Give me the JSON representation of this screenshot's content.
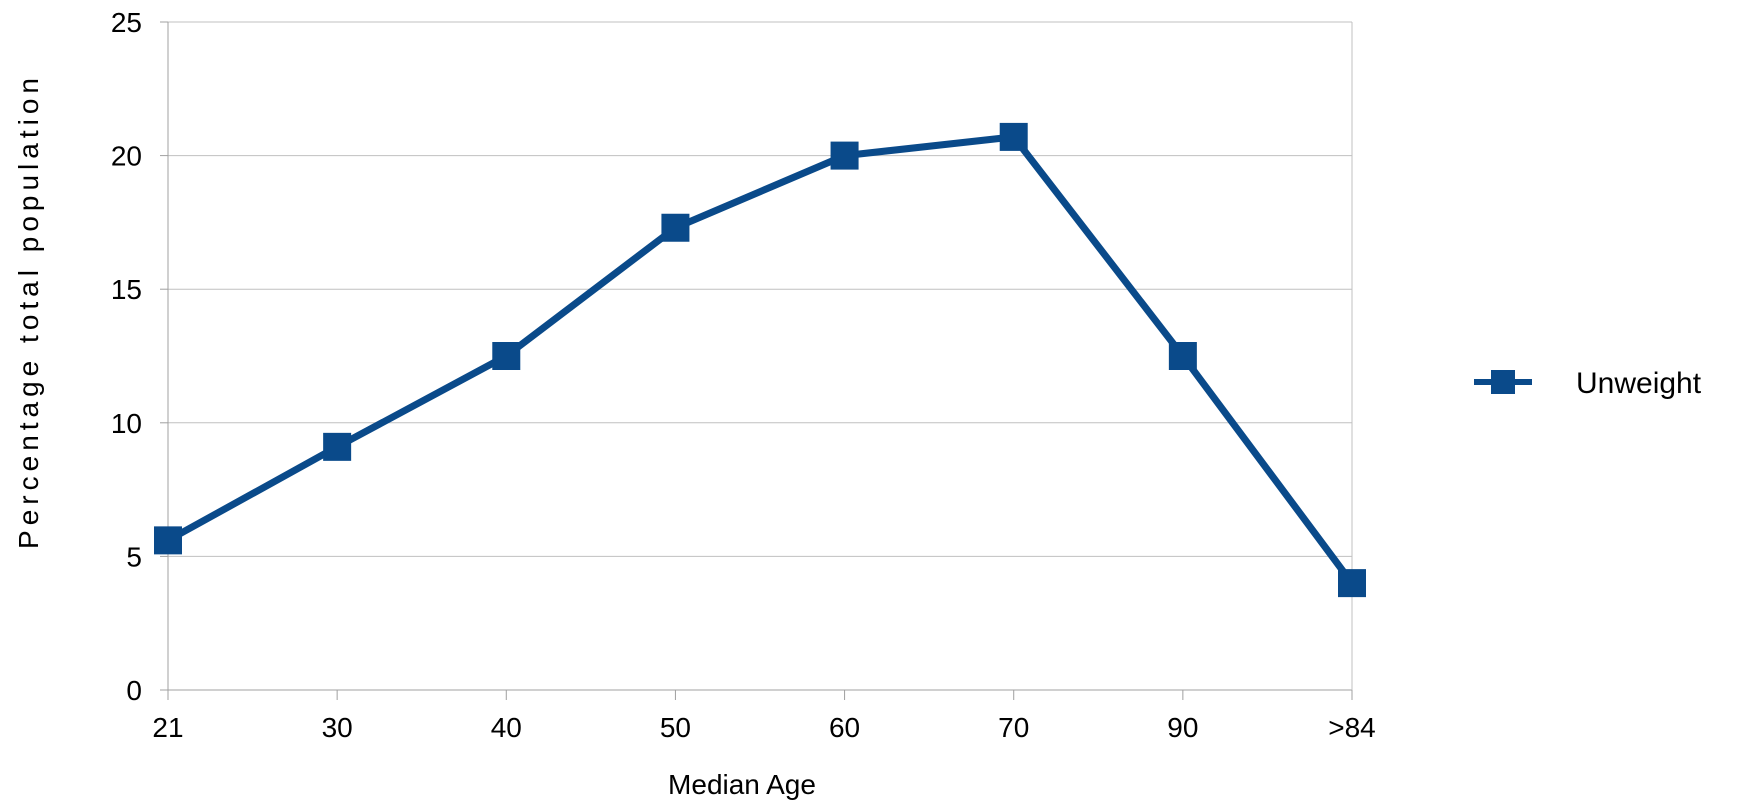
{
  "chart_data": {
    "type": "line",
    "title": "",
    "xlabel": "Median Age",
    "ylabel": "Percentage total population",
    "categories": [
      "21",
      "30",
      "40",
      "50",
      "60",
      "70",
      "90",
      ">84"
    ],
    "series": [
      {
        "name": "Unweight",
        "values": [
          5.6,
          9.1,
          12.5,
          17.3,
          20.0,
          20.7,
          12.5,
          4.0
        ],
        "color": "#0a4a8a"
      }
    ],
    "ylim": [
      0,
      25
    ],
    "yticks": [
      0,
      5,
      10,
      15,
      20,
      25
    ],
    "grid": true,
    "legend_position": "right",
    "colors": {
      "grid": "#c0c0c0",
      "axis": "#a0a0a0",
      "series": "#0a4a8a"
    }
  }
}
